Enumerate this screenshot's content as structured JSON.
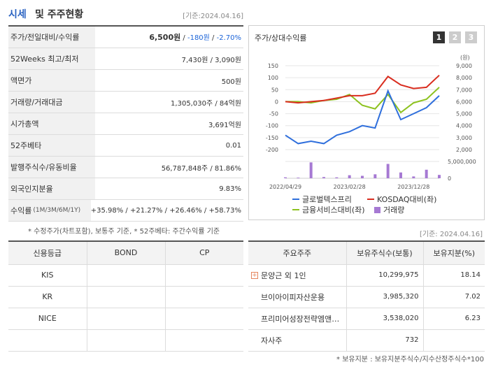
{
  "header": {
    "title_main": "시세",
    "title_sub": "및 주주현황",
    "base_date": "[기준:2024.04.16]"
  },
  "quote": [
    {
      "label": "주가/전일대비/수익률",
      "price": "6,500원",
      "sep1": " / ",
      "change": "-180원",
      "sep2": " / ",
      "rate": "-2.70%"
    },
    {
      "label": "52Weeks 최고/최저",
      "value": "7,430원 / 3,090원"
    },
    {
      "label": "액면가",
      "value": "500원"
    },
    {
      "label": "거래량/거래대금",
      "value": "1,305,030주 / 84억원"
    },
    {
      "label": "시가총액",
      "value": "3,691억원"
    },
    {
      "label": "52주베타",
      "value": "0.01"
    },
    {
      "label": "발행주식수/유동비율",
      "value": "56,787,848주 / 81.86%"
    },
    {
      "label": "외국인지분율",
      "value": "9.83%"
    },
    {
      "label": "수익률",
      "label_sub": "(1M/3M/6M/1Y)",
      "r1": "+35.98%",
      "r2": "+21.27%",
      "r3": "+26.46%",
      "r4": "+58.73%",
      "sep": " / "
    }
  ],
  "notes": {
    "quote_note": "* 수정주가(차트포함), 보통주 기준, * 52주베타: 주간수익률 기준",
    "base_date2": "[기준: 2024.04.16]",
    "holder_note": "* 보유지분 : 보유지분주식수/지수산정주식수*100"
  },
  "chart": {
    "title": "주가/상대수익률",
    "tabs": [
      "1",
      "2",
      "3"
    ],
    "right_unit": "(원)",
    "left_ticks": [
      "150",
      "100",
      "50",
      "0",
      "-50",
      "-100",
      "-150",
      "-200"
    ],
    "right_ticks": [
      "9,000",
      "8,000",
      "7,000",
      "6,000",
      "5,000",
      "4,000",
      "3,000",
      "2,000"
    ],
    "vol_tick": "5,000,000",
    "vol_zero": "0",
    "x_ticks": [
      "2022/04/29",
      "2023/02/28",
      "2023/12/28"
    ],
    "legend": {
      "s1": "글로벌텍스프리",
      "s2": "KOSDAQ대비(좌)",
      "s3": "금융서비스대비(좌)",
      "s4": "거래량"
    },
    "colors": {
      "s1": "#2f6fdc",
      "s2": "#d92d1f",
      "s3": "#8dc21f",
      "s4": "#a679d3"
    }
  },
  "chart_data": {
    "type": "line",
    "x": [
      "2022/04/29",
      "2022/06",
      "2022/08",
      "2022/10",
      "2022/12",
      "2023/02/28",
      "2023/04",
      "2023/06",
      "2023/08",
      "2023/10",
      "2023/12/28",
      "2024/02",
      "2024/04"
    ],
    "series": [
      {
        "name": "글로벌텍스프리",
        "values": [
          -140,
          -175,
          -165,
          -175,
          -140,
          -125,
          -100,
          -110,
          45,
          -75,
          -50,
          -25,
          25
        ]
      },
      {
        "name": "KOSDAQ대비(좌)",
        "values": [
          0,
          -5,
          0,
          5,
          15,
          25,
          25,
          35,
          105,
          70,
          55,
          60,
          110
        ]
      },
      {
        "name": "금융서비스대비(좌)",
        "values": [
          0,
          0,
          -5,
          5,
          10,
          30,
          -15,
          -30,
          30,
          -45,
          -5,
          10,
          60
        ]
      },
      {
        "name": "거래량",
        "values": [
          0.3,
          0.2,
          5.2,
          0.4,
          0.3,
          1.0,
          0.8,
          1.3,
          4.7,
          1.9,
          0.6,
          2.8,
          1.1
        ]
      }
    ],
    "ylim_left": [
      -200,
      150
    ],
    "ylim_right": [
      2000,
      9000
    ]
  },
  "credit": {
    "headers": [
      "신용등급",
      "BOND",
      "CP"
    ],
    "rows": [
      [
        "KIS",
        "",
        ""
      ],
      [
        "KR",
        "",
        ""
      ],
      [
        "NICE",
        "",
        ""
      ],
      [
        "",
        "",
        ""
      ]
    ]
  },
  "holders": {
    "headers": [
      "주요주주",
      "보유주식수(보통)",
      "보유지분(%)"
    ],
    "rows": [
      {
        "name": "문양근 외 1인",
        "shares": "10,299,975",
        "pct": "18.14",
        "expand": "+"
      },
      {
        "name": "브이아이피자산운용",
        "shares": "3,985,320",
        "pct": "7.02"
      },
      {
        "name": "프리미어성장전략엠앤…",
        "shares": "3,538,020",
        "pct": "6.23"
      },
      {
        "name": "자사주",
        "shares": "732",
        "pct": ""
      }
    ]
  }
}
